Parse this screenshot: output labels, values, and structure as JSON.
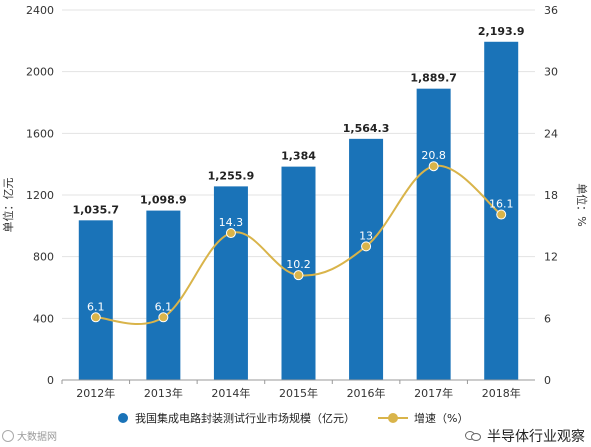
{
  "chart_data": {
    "type": "bar",
    "categories": [
      "2012年",
      "2013年",
      "2014年",
      "2015年",
      "2016年",
      "2017年",
      "2018年"
    ],
    "series": [
      {
        "name": "我国集成电路封装测试行业市场规模（亿元）",
        "type": "bar",
        "axis": "left",
        "values": [
          1035.7,
          1098.9,
          1255.9,
          1384,
          1564.3,
          1889.7,
          2193.9
        ],
        "labels": [
          "1,035.7",
          "1,098.9",
          "1,255.9",
          "1,384",
          "1,564.3",
          "1,889.7",
          "2,193.9"
        ],
        "color": "#1a73b8"
      },
      {
        "name": "增速（%）",
        "type": "line",
        "axis": "right",
        "smooth": true,
        "values": [
          6.1,
          6.1,
          14.3,
          10.2,
          13,
          20.8,
          16.1
        ],
        "labels": [
          "6.1",
          "6.1",
          "14.3",
          "10.2",
          "13",
          "20.8",
          "16.1"
        ],
        "color": "#d9b44a"
      }
    ],
    "ylabel_left": "单位：亿元",
    "ylabel_right": "单位：%",
    "ylim_left": [
      0,
      2400
    ],
    "ylim_right": [
      0,
      36
    ],
    "yticks_left": [
      0,
      400,
      800,
      1200,
      1600,
      2000,
      2400
    ],
    "yticks_right": [
      0,
      6,
      12,
      18,
      24,
      30,
      36
    ],
    "grid": true,
    "legend": "bottom"
  },
  "footer": {
    "left_text": "大数据网",
    "right_text": "半导体行业观察"
  }
}
